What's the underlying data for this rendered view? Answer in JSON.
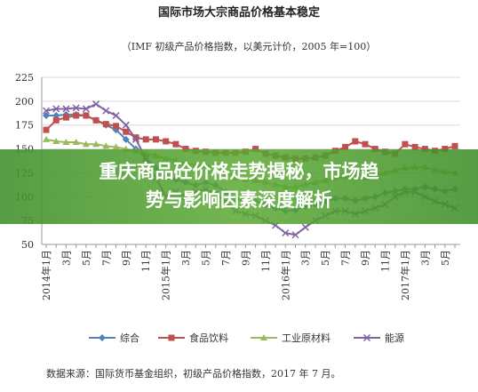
{
  "chart_data": {
    "type": "line",
    "title": "国际市场大宗商品价格基本稳定",
    "subtitle": "（IMF 初级产品价格指数，以美元计价，2005 年=100）",
    "source": "数据来源：国际货币基金组织，初级产品价格指数，2017 年 7 月。",
    "annotations": [
      "重庆商品砼价格走势揭秘，市场趋",
      "势与影响因素深度解析"
    ],
    "categories": [
      "2014年1月",
      null,
      "3月",
      null,
      "5月",
      null,
      "7月",
      null,
      "9月",
      null,
      "11月",
      null,
      "2015年1月",
      null,
      "3月",
      null,
      "5月",
      null,
      "7月",
      null,
      "9月",
      null,
      "11月",
      null,
      "2016年1月",
      null,
      "3月",
      null,
      "5月",
      null,
      "7月",
      null,
      "9月",
      null,
      "11月",
      null,
      "2017年1月",
      null,
      "3月",
      null,
      "5月",
      null
    ],
    "ylim": [
      50,
      225
    ],
    "yticks": [
      50,
      75,
      100,
      125,
      150,
      175,
      200,
      225
    ],
    "grid": true,
    "series": [
      {
        "name": "综合",
        "color": "#4f81bd",
        "marker": "diamond",
        "values": [
          185,
          185,
          186,
          186,
          185,
          180,
          175,
          170,
          160,
          150,
          140,
          130,
          120,
          118,
          115,
          112,
          115,
          112,
          105,
          98,
          95,
          95,
          92,
          88,
          85,
          86,
          90,
          92,
          95,
          98,
          98,
          96,
          98,
          100,
          104,
          106,
          108,
          108,
          110,
          108,
          106,
          108
        ]
      },
      {
        "name": "食品饮料",
        "color": "#c0504d",
        "marker": "square",
        "values": [
          170,
          180,
          183,
          185,
          185,
          180,
          176,
          174,
          168,
          162,
          160,
          160,
          158,
          155,
          150,
          148,
          147,
          146,
          146,
          146,
          147,
          150,
          145,
          143,
          141,
          140,
          140,
          141,
          143,
          148,
          152,
          158,
          155,
          150,
          147,
          145,
          155,
          152,
          150,
          148,
          150,
          153
        ]
      },
      {
        "name": "工业原材料",
        "color": "#9bbb59",
        "marker": "triangle",
        "values": [
          160,
          158,
          157,
          157,
          155,
          155,
          153,
          152,
          150,
          148,
          145,
          143,
          140,
          138,
          135,
          133,
          133,
          130,
          125,
          120,
          118,
          117,
          115,
          113,
          110,
          110,
          113,
          115,
          117,
          120,
          121,
          120,
          120,
          122,
          125,
          128,
          130,
          131,
          131,
          128,
          126,
          125
        ]
      },
      {
        "name": "能源",
        "color": "#8064a2",
        "marker": "x",
        "values": [
          190,
          192,
          192,
          193,
          192,
          197,
          190,
          185,
          175,
          160,
          140,
          120,
          100,
          105,
          100,
          105,
          108,
          103,
          95,
          85,
          82,
          80,
          75,
          70,
          62,
          60,
          68,
          75,
          80,
          85,
          85,
          82,
          85,
          88,
          92,
          100,
          105,
          105,
          100,
          95,
          92,
          88
        ]
      }
    ]
  }
}
